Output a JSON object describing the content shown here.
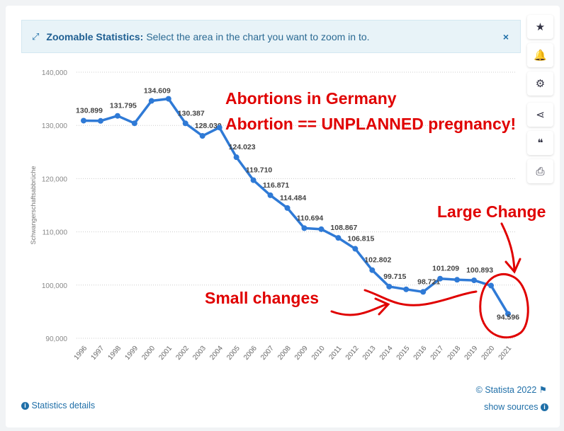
{
  "banner": {
    "title": "Zoomable Statistics:",
    "text": "Select the area in the chart you want to zoom in to.",
    "close": "×"
  },
  "side_buttons": [
    {
      "icon": "star-icon",
      "glyph": "★"
    },
    {
      "icon": "bell-icon",
      "glyph": "🔔"
    },
    {
      "icon": "gear-icon",
      "glyph": "⚙"
    },
    {
      "icon": "share-icon",
      "glyph": "⋖"
    },
    {
      "icon": "quote-icon",
      "glyph": "❝"
    },
    {
      "icon": "print-icon",
      "glyph": "⎙"
    }
  ],
  "footer": {
    "copyright": "© Statista 2022",
    "details": "Statistics details",
    "sources": "show sources"
  },
  "annotations": {
    "title": "Abortions in Germany",
    "subtitle": "Abortion == UNPLANNED pregnancy!",
    "large": "Large Change",
    "small": "Small changes"
  },
  "chart_data": {
    "type": "line",
    "ylabel": "Schwangerschaftsabbrüche",
    "ylim": [
      90000,
      140000
    ],
    "yticks": [
      "90,000",
      "100,000",
      "110,000",
      "120,000",
      "130,000",
      "140,000"
    ],
    "ytick_values": [
      90000,
      100000,
      110000,
      120000,
      130000,
      140000
    ],
    "color": "#2f7ad6",
    "categories": [
      "1996",
      "1997",
      "1998",
      "1999",
      "2000",
      "2001",
      "2002",
      "2003",
      "2004",
      "2005",
      "2006",
      "2007",
      "2008",
      "2009",
      "2010",
      "2011",
      "2012",
      "2013",
      "2014",
      "2015",
      "2016",
      "2017",
      "2018",
      "2019",
      "2020",
      "2021"
    ],
    "values": [
      130899,
      130850,
      131795,
      130400,
      134609,
      135000,
      130387,
      128030,
      129600,
      124023,
      119710,
      116871,
      114484,
      110694,
      110500,
      108867,
      106815,
      102802,
      99715,
      99200,
      98721,
      101209,
      101000,
      100893,
      99900,
      94596
    ],
    "labels": [
      "130.899",
      "",
      "131.795",
      "",
      "134.609",
      "",
      "130.387",
      "128.030",
      "",
      "124.023",
      "119.710",
      "116.871",
      "114.484",
      "110.694",
      "",
      "108.867",
      "106.815",
      "102.802",
      "99.715",
      "",
      "98.721",
      "101.209",
      "",
      "100.893",
      "",
      "94.596"
    ]
  }
}
